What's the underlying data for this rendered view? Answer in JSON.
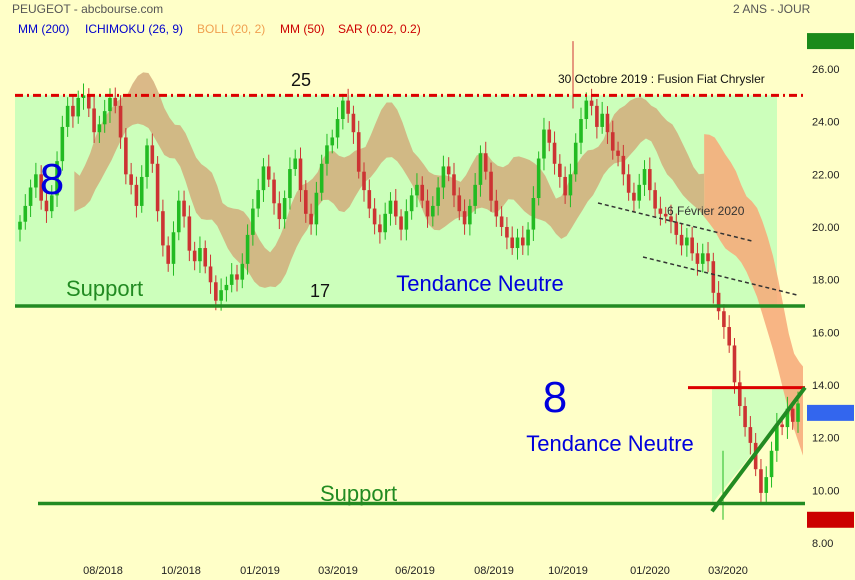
{
  "header": {
    "title": "PEUGEOT - abcbourse.com",
    "period": "2 ANS - JOUR"
  },
  "indicators": [
    {
      "label": "MM (200)",
      "color": "#0000cc"
    },
    {
      "label": "ICHIMOKU (26, 9)",
      "color": "#0000cc"
    },
    {
      "label": "BOLL (20, 2)",
      "color": "#f0a050"
    },
    {
      "label": "MM (50)",
      "color": "#cc0000"
    },
    {
      "label": "SAR (0.02, 0.2)",
      "color": "#cc0000"
    }
  ],
  "colors": {
    "background": "#ffffc8",
    "zone": "#ccffbb",
    "support": "#228b22",
    "resistance": "#dd0000",
    "up_candle": "#22bb22",
    "down_candle": "#cc3333",
    "ichimoku_cloud": "#d2a878",
    "boll_cloud": "#f7a878",
    "blue_text": "#0000dd"
  },
  "chart_data": {
    "type": "candlestick",
    "title": "PEUGEOT",
    "x_ticks": [
      "08/2018",
      "10/2018",
      "01/2019",
      "03/2019",
      "06/2019",
      "08/2019",
      "10/2019",
      "01/2020",
      "03/2020"
    ],
    "y_ticks": [
      8,
      10,
      12,
      14,
      16,
      18,
      20,
      22,
      24,
      26
    ],
    "ylim": [
      7.5,
      27.8
    ],
    "price_labels": {
      "high": "27.06",
      "last": "12.94",
      "low": "8.88"
    },
    "price_values": {
      "high": 27.06,
      "last": 12.94,
      "low": 8.88
    },
    "close_series": [
      20.2,
      20.8,
      21.5,
      22.0,
      21.0,
      20.6,
      21.2,
      22.5,
      23.8,
      24.6,
      24.2,
      24.9,
      25.0,
      24.5,
      23.6,
      23.9,
      24.4,
      24.9,
      24.6,
      23.4,
      22.0,
      21.6,
      20.8,
      21.9,
      23.1,
      22.4,
      20.6,
      19.3,
      18.6,
      19.8,
      21.0,
      20.4,
      19.1,
      18.7,
      19.2,
      18.5,
      17.9,
      17.2,
      17.6,
      17.8,
      18.2,
      18.0,
      18.6,
      19.7,
      20.7,
      21.4,
      22.3,
      21.8,
      20.9,
      20.3,
      21.1,
      22.2,
      22.6,
      21.4,
      20.5,
      20.1,
      21.3,
      22.4,
      23.1,
      23.4,
      24.1,
      24.8,
      24.3,
      23.6,
      22.1,
      21.4,
      20.7,
      20.1,
      19.8,
      20.5,
      21.0,
      20.4,
      19.9,
      20.6,
      21.2,
      21.6,
      21.0,
      20.4,
      20.8,
      21.5,
      22.3,
      22.0,
      21.2,
      20.6,
      20.1,
      20.8,
      21.6,
      22.8,
      22.1,
      21.0,
      20.4,
      20.0,
      19.6,
      19.2,
      19.6,
      19.3,
      19.9,
      21.1,
      22.6,
      23.7,
      23.2,
      22.4,
      21.9,
      21.2,
      22.0,
      23.2,
      24.1,
      24.8,
      24.6,
      23.8,
      24.3,
      23.6,
      22.9,
      22.7,
      22.0,
      21.3,
      21.0,
      21.6,
      22.2,
      21.4,
      20.7,
      20.5,
      20.4,
      20.2,
      19.7,
      19.3,
      19.6,
      19.0,
      18.6,
      19.0,
      18.7,
      17.5,
      16.8,
      16.2,
      15.5,
      14.1,
      13.2,
      12.4,
      11.8,
      10.8,
      9.9,
      10.5,
      11.5,
      12.5,
      12.4,
      13.1,
      12.6,
      13.3
    ],
    "trend_labels": [
      {
        "value": "8",
        "text": "Tendance Neutre"
      },
      {
        "value": "8",
        "text": "Tendance Neutre"
      }
    ],
    "support_labels": [
      "Support",
      "Support"
    ],
    "levels": [
      {
        "label": "25",
        "value": 25.0
      },
      {
        "label": "17",
        "value": 17.0
      },
      {
        "value": 9.5
      }
    ],
    "annotations": [
      "30 Octobre 2019 : Fusion Fiat Chrysler",
      "6 Février 2020"
    ],
    "grid": false,
    "legend": "top-left"
  }
}
